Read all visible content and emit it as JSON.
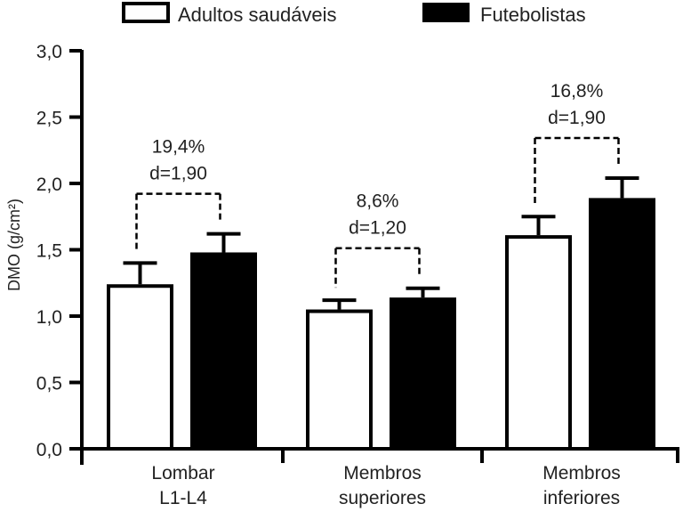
{
  "chart_data": {
    "type": "bar",
    "title": "",
    "xlabel": "",
    "ylabel": "DMO (g/cm²)",
    "ylim": [
      0,
      3.0
    ],
    "yticks": [
      0.0,
      0.5,
      1.0,
      1.5,
      2.0,
      2.5,
      3.0
    ],
    "ytick_labels": [
      "0,0",
      "0,5",
      "1,0",
      "1,5",
      "2,0",
      "2,5",
      "3,0"
    ],
    "grid": false,
    "legend_position": "top-center",
    "categories": [
      {
        "line1": "Lombar",
        "line2": "L1-L4"
      },
      {
        "line1": "Membros",
        "line2": "superiores"
      },
      {
        "line1": "Membros",
        "line2": "inferiores"
      }
    ],
    "series": [
      {
        "name": "Adultos saudáveis",
        "fill": "#ffffff",
        "stroke": "#000000",
        "values": [
          1.24,
          1.05,
          1.61
        ],
        "error": [
          0.16,
          0.07,
          0.14
        ]
      },
      {
        "name": "Futebolistas",
        "fill": "#000000",
        "stroke": "#000000",
        "values": [
          1.48,
          1.14,
          1.89
        ],
        "error": [
          0.14,
          0.07,
          0.15
        ]
      }
    ],
    "annotations": [
      {
        "category": 0,
        "line1": "19,4%",
        "line2": "d=1,90"
      },
      {
        "category": 1,
        "line1": "8,6%",
        "line2": "d=1,20"
      },
      {
        "category": 2,
        "line1": "16,8%",
        "line2": "d=1,90"
      }
    ]
  }
}
